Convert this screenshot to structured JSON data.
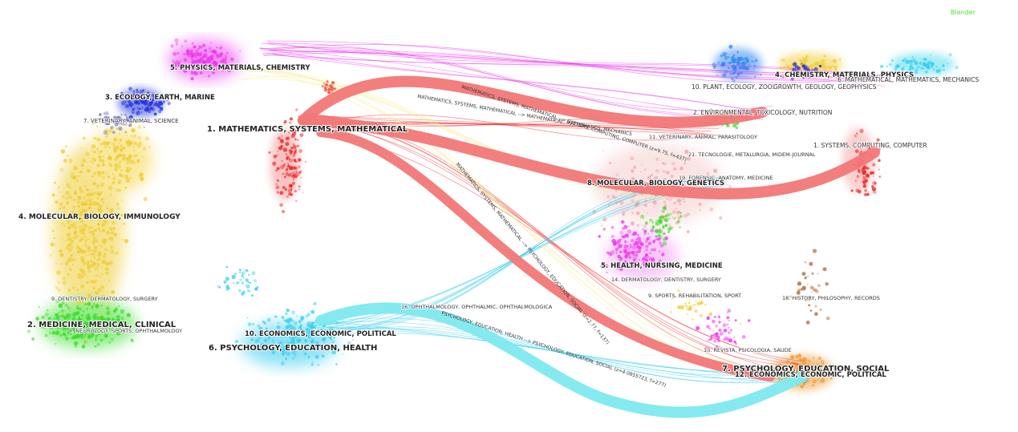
{
  "brand_label": "Blender",
  "colors": {
    "flow_red": "#f27777",
    "flow_cyan": "#7ee9ef",
    "mathematics": "#ee2222",
    "physics": "#ee33ee",
    "ecology": "#2233dd",
    "veterinary": "#6666cc",
    "molecular": "#eecc33",
    "medicine": "#33dd22",
    "psychology": "#33ccee",
    "economics": "#ee9933"
  },
  "citing_labels": [
    {
      "id": "1",
      "text": "1. MATHEMATICS, SYSTEMS, MATHEMATICAL",
      "size": "large"
    },
    {
      "id": "2",
      "text": "2. MEDICINE, MEDICAL, CLINICAL",
      "size": "large"
    },
    {
      "id": "3",
      "text": "3. ECOLOGY, EARTH, MARINE",
      "size": "medium"
    },
    {
      "id": "4",
      "text": "4. MOLECULAR, BIOLOGY, IMMUNOLOGY",
      "size": "medium"
    },
    {
      "id": "5",
      "text": "5. PHYSICS, MATERIALS, CHEMISTRY",
      "size": "medium"
    },
    {
      "id": "6",
      "text": "6. PSYCHOLOGY, EDUCATION, HEALTH",
      "size": "large"
    },
    {
      "id": "7",
      "text": "7. VETERINARY, ANIMAL, SCIENCE",
      "size": "small"
    },
    {
      "id": "8",
      "text": "8. NEUROLOGY, SPORTS, OPHTHALMOLOGY",
      "size": "small"
    },
    {
      "id": "9",
      "text": "9. DENTISTRY, DERMATOLOGY, SURGERY",
      "size": "small"
    },
    {
      "id": "10",
      "text": "10. ECONOMICS, ECONOMIC, POLITICAL",
      "size": "medium"
    }
  ],
  "cited_labels": [
    {
      "id": "1",
      "text": "1. SYSTEMS, COMPUTING, COMPUTER",
      "size": "small"
    },
    {
      "id": "2",
      "text": "2. ENVIRONMENTAL, TOXICOLOGY, NUTRITION",
      "size": "small"
    },
    {
      "id": "4",
      "text": "4. CHEMISTRY, MATERIALS, PHYSICS",
      "size": "medium"
    },
    {
      "id": "5",
      "text": "5. HEALTH, NURSING, MEDICINE",
      "size": "medium"
    },
    {
      "id": "6",
      "text": "6. MATHEMATICAL, MATHEMATICS, MECHANICS",
      "size": "small"
    },
    {
      "id": "7",
      "text": "7. PSYCHOLOGY, EDUCATION, SOCIAL",
      "size": "large"
    },
    {
      "id": "8",
      "text": "8. MOLECULAR, BIOLOGY, GENETICS",
      "size": "medium"
    },
    {
      "id": "9",
      "text": "9. SPORTS, REHABILITATION, SPORT",
      "size": "small"
    },
    {
      "id": "10",
      "text": "10. PLANT, ECOLOGY, ZOOLOGY",
      "size": "small"
    },
    {
      "id": "11",
      "text": "11. VETERINARY, ANIMAL, PARASITOLOGY",
      "size": "tiny"
    },
    {
      "id": "12",
      "text": "12. ECONOMICS, ECONOMIC, POLITICAL",
      "size": "medium"
    },
    {
      "id": "13",
      "text": "13. REVISTA, PSICOLOGIA, SAUDE",
      "size": "tiny"
    },
    {
      "id": "14",
      "text": "14. DERMATOLOGY, DENTISTRY, SURGERY",
      "size": "tiny"
    },
    {
      "id": "16",
      "text": "16. OPHTHALMOLOGY, OPHTHALMIC, OPHTHALMOLOGICA",
      "size": "tiny"
    },
    {
      "id": "18",
      "text": "18. HISTORY, PHILOSOPHY, RECORDS",
      "size": "tiny"
    },
    {
      "id": "19",
      "text": "19. FORENSIC, ANATOMY, MEDICINE",
      "size": "tiny"
    },
    {
      "id": "21",
      "text": "21. TECNOLOGIE, METALURGIA, MIDEM-JOURNAL",
      "size": "tiny"
    },
    {
      "id": "geo",
      "text": "GROWTH, GEOLOGY, GEOPHYSICS",
      "size": "small"
    }
  ],
  "flows": [
    {
      "id": "math-to-math",
      "label": "MATHEMATICS, SYSTEMS, MATHEMATICAL --> MATHEMATICAL, MATHEMATICS, MECHANICS",
      "stats": "",
      "weight": 3
    },
    {
      "id": "math-to-systems",
      "label": "MATHEMATICS, SYSTEMS, MATHEMATICAL --> SYSTEMS, COMPUTING, COMPUTER",
      "stats": "(z=9.75, f=437)",
      "weight": 6
    },
    {
      "id": "math-to-psych",
      "label": "MATHEMATICS, SYSTEMS, MATHEMATICAL --> PSYCHOLOGY, EDUCATION, SOCIAL",
      "stats": "(z=2.77, f=137)",
      "weight": 5
    },
    {
      "id": "psych-to-psych",
      "label": "PSYCHOLOGY, EDUCATION, HEALTH --> PSYCHOLOGY, EDUCATION, SOCIAL",
      "stats": "(z=4.0855723, f=277)",
      "weight": 5
    }
  ]
}
